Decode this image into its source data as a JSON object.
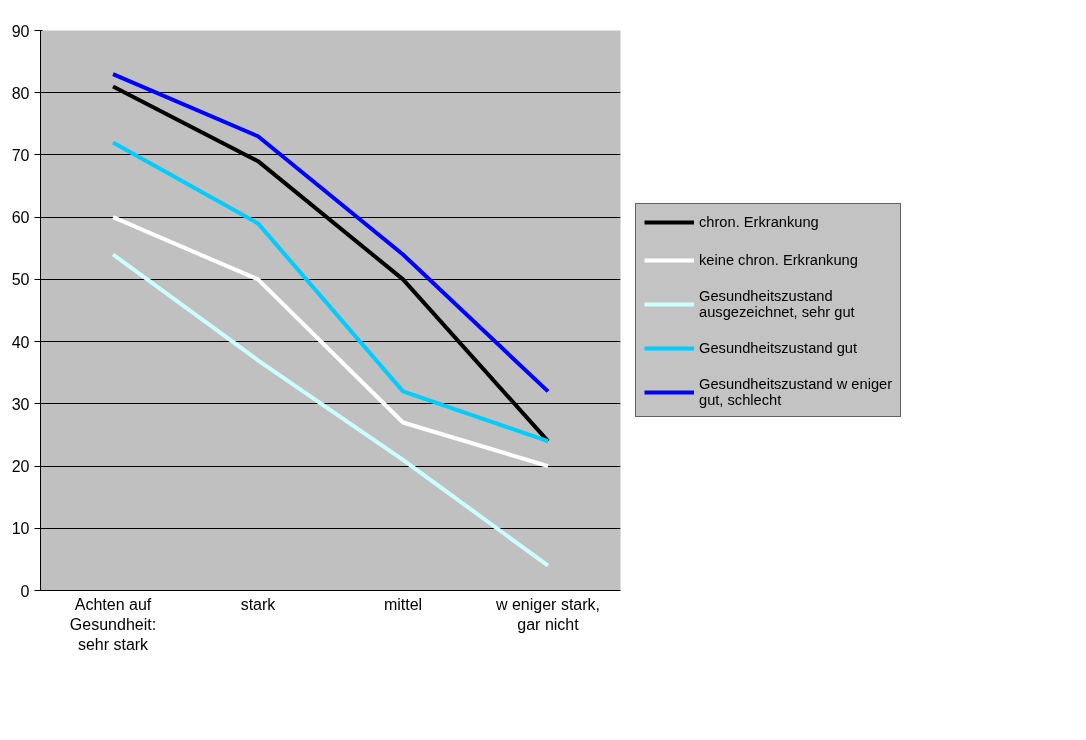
{
  "chart_data": {
    "type": "line",
    "categories": [
      "Achten auf Gesundheit: sehr stark",
      "stark",
      "mittel",
      "w eniger stark, gar nicht"
    ],
    "series": [
      {
        "name": "chron. Erkrankung",
        "color": "#000000",
        "values": [
          81,
          69,
          50,
          24
        ]
      },
      {
        "name": "keine chron. Erkrankung",
        "color": "#ffffff",
        "values": [
          60,
          50,
          27,
          20
        ]
      },
      {
        "name": "Gesundheitszustand ausgezeichnet, sehr gut",
        "color": "#ccffff",
        "values": [
          54,
          37,
          21,
          4
        ]
      },
      {
        "name": "Gesundheitszustand gut",
        "color": "#00ccff",
        "values": [
          72,
          59,
          32,
          24
        ]
      },
      {
        "name": "Gesundheitszustand w eniger gut, schlecht",
        "color": "#0000ff",
        "values": [
          83,
          73,
          54,
          32
        ]
      }
    ],
    "ylim": [
      0,
      90
    ],
    "yticks": [
      0,
      10,
      20,
      30,
      40,
      50,
      60,
      70,
      80,
      90
    ],
    "grid": "y",
    "legend": "right",
    "marker": "none",
    "line_style": "solid"
  }
}
